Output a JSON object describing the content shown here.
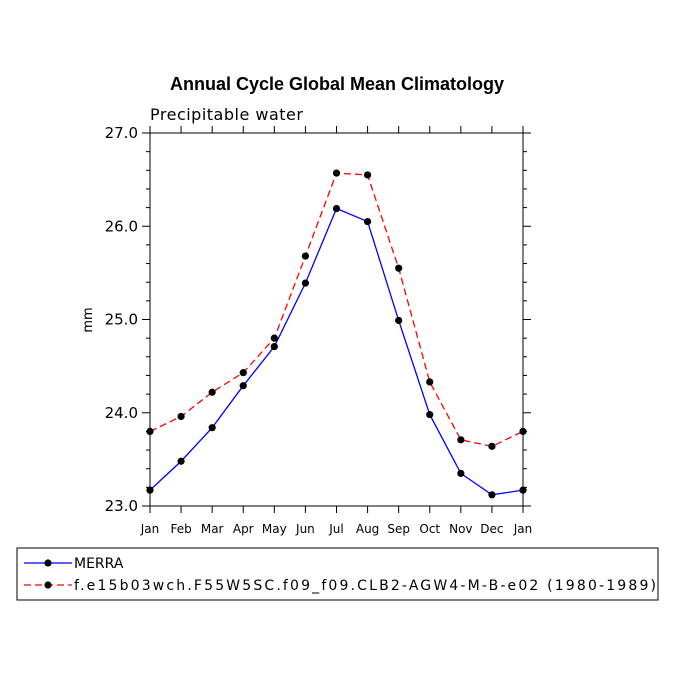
{
  "chart_data": {
    "type": "line",
    "title": "Annual Cycle Global Mean Climatology",
    "subtitle": "Precipitable water",
    "ylabel": "mm",
    "xlabel": "",
    "ylim": [
      23.0,
      27.0
    ],
    "yticks": [
      "23.0",
      "24.0",
      "25.0",
      "26.0",
      "27.0"
    ],
    "categories": [
      "Jan",
      "Feb",
      "Mar",
      "Apr",
      "May",
      "Jun",
      "Jul",
      "Aug",
      "Sep",
      "Oct",
      "Nov",
      "Dec",
      "Jan"
    ],
    "series": [
      {
        "name": "MERRA",
        "color": "#0000ff",
        "style": "solid",
        "values": [
          23.17,
          23.48,
          23.84,
          24.29,
          24.71,
          25.39,
          26.19,
          26.05,
          24.99,
          23.98,
          23.35,
          23.12,
          23.17
        ]
      },
      {
        "name": "f.e15b03wch.F55W5SC.f09_f09.CLB2-AGW4-M-B-e02 (1980-1989)",
        "color": "#ff0000",
        "style": "dashed",
        "values": [
          23.8,
          23.96,
          24.22,
          24.43,
          24.8,
          25.68,
          26.57,
          26.55,
          25.55,
          24.33,
          23.71,
          23.64,
          23.8
        ]
      }
    ]
  }
}
